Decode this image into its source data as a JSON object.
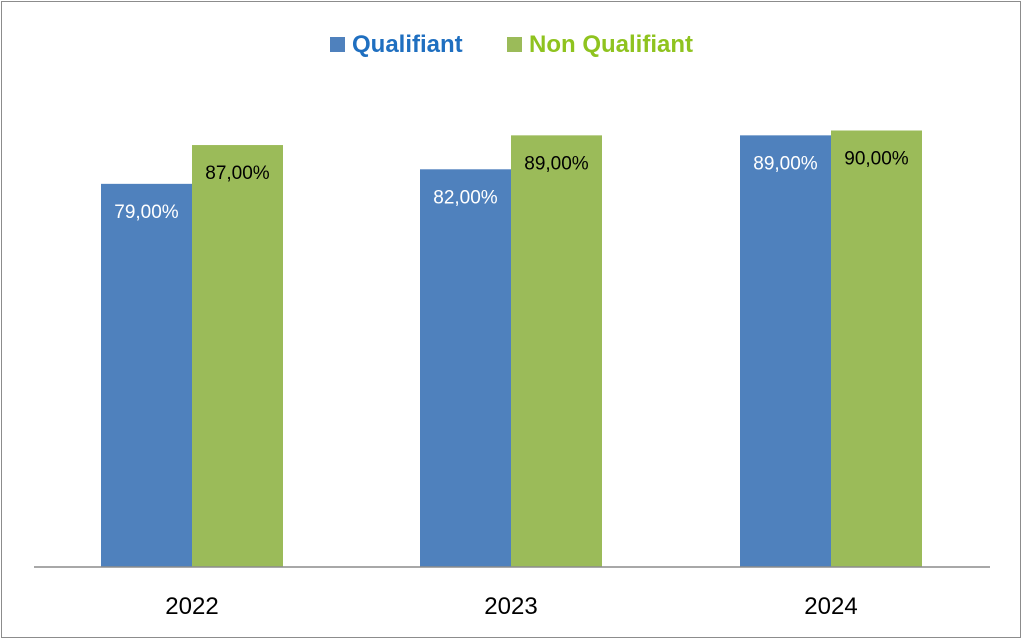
{
  "chart_data": {
    "type": "bar",
    "title": "",
    "xlabel": "",
    "ylabel": "",
    "ylim": [
      0,
      100
    ],
    "grid": false,
    "legend_position": "top",
    "categories": [
      "2022",
      "2023",
      "2024"
    ],
    "series": [
      {
        "name": "Qualifiant",
        "color": "#4f81bd",
        "legend_text_color": "#1f6fc0",
        "label_color": "#ffffff",
        "values": [
          79,
          82,
          89
        ],
        "labels": [
          "79,00%",
          "82,00%",
          "89,00%"
        ]
      },
      {
        "name": "Non Qualifiant",
        "color": "#9bbb59",
        "legend_text_color": "#8fc31f",
        "label_color": "#000000",
        "values": [
          87,
          89,
          90
        ],
        "labels": [
          "87,00%",
          "89,00%",
          "90,00%"
        ]
      }
    ]
  }
}
